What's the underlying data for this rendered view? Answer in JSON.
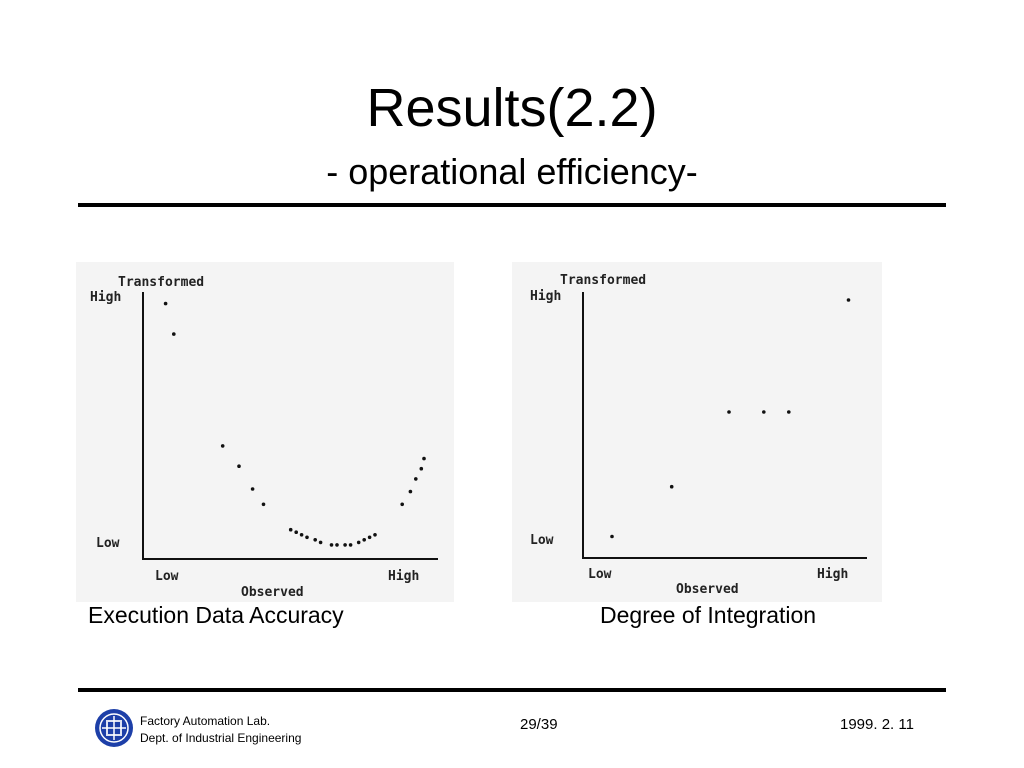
{
  "slide": {
    "title": "Results(2.2)",
    "subtitle": "- operational efficiency-"
  },
  "footer": {
    "lab_line1": "Factory Automation Lab.",
    "lab_line2": "Dept. of Industrial Engineering",
    "page": "29/39",
    "date": "1999. 2. 11"
  },
  "colors": {
    "text": "#000000",
    "chart_bg": "#f4f4f4",
    "logo_blue": "#1d3fa8"
  },
  "icons": {
    "logo": "university-emblem-icon"
  },
  "chart_data": [
    {
      "type": "scatter",
      "caption": "Execution Data Accuracy",
      "ylabel": "Transformed",
      "xlabel": "Observed",
      "y_ticks": [
        "High",
        "Low"
      ],
      "x_ticks": [
        "Low",
        "High"
      ],
      "xlim": [
        0,
        100
      ],
      "ylim": [
        0,
        100
      ],
      "points": [
        {
          "x": 5,
          "y": 97
        },
        {
          "x": 8,
          "y": 85
        },
        {
          "x": 26,
          "y": 41
        },
        {
          "x": 32,
          "y": 33
        },
        {
          "x": 37,
          "y": 24
        },
        {
          "x": 41,
          "y": 18
        },
        {
          "x": 51,
          "y": 8
        },
        {
          "x": 53,
          "y": 7
        },
        {
          "x": 55,
          "y": 6
        },
        {
          "x": 57,
          "y": 5
        },
        {
          "x": 60,
          "y": 4
        },
        {
          "x": 62,
          "y": 3
        },
        {
          "x": 66,
          "y": 2
        },
        {
          "x": 68,
          "y": 2
        },
        {
          "x": 71,
          "y": 2
        },
        {
          "x": 73,
          "y": 2
        },
        {
          "x": 76,
          "y": 3
        },
        {
          "x": 78,
          "y": 4
        },
        {
          "x": 80,
          "y": 5
        },
        {
          "x": 82,
          "y": 6
        },
        {
          "x": 92,
          "y": 18
        },
        {
          "x": 95,
          "y": 23
        },
        {
          "x": 97,
          "y": 28
        },
        {
          "x": 99,
          "y": 32
        },
        {
          "x": 100,
          "y": 36
        }
      ]
    },
    {
      "type": "scatter",
      "caption": "Degree of Integration",
      "ylabel": "Transformed",
      "xlabel": "Observed",
      "y_ticks": [
        "High",
        "Low"
      ],
      "x_ticks": [
        "Low",
        "High"
      ],
      "xlim": [
        0,
        100
      ],
      "ylim": [
        0,
        100
      ],
      "points": [
        {
          "x": 4,
          "y": 3
        },
        {
          "x": 28,
          "y": 23
        },
        {
          "x": 51,
          "y": 53
        },
        {
          "x": 65,
          "y": 53
        },
        {
          "x": 75,
          "y": 53
        },
        {
          "x": 99,
          "y": 98
        }
      ]
    }
  ]
}
